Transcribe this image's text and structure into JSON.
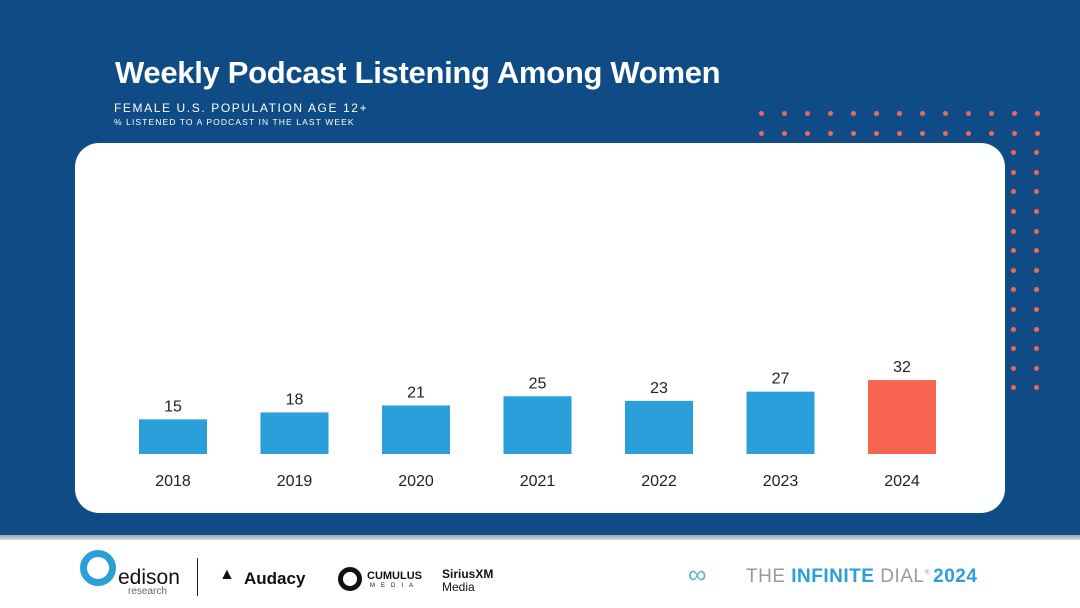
{
  "title": "Weekly Podcast Listening Among Women",
  "subtitle": "FEMALE U.S. POPULATION AGE 12+",
  "subtitle2": "% LISTENED TO A PODCAST IN THE LAST WEEK",
  "colors": {
    "background": "#0f4c86",
    "bar": "#2a9fd9",
    "highlight": "#f76450"
  },
  "chart_data": {
    "type": "bar",
    "title": "Weekly Podcast Listening Among Women",
    "categories": [
      "2018",
      "2019",
      "2020",
      "2021",
      "2022",
      "2023",
      "2024"
    ],
    "values": [
      15,
      18,
      21,
      25,
      23,
      27,
      32
    ],
    "highlight_index": 6,
    "ylim": [
      0,
      100
    ],
    "xlabel": "",
    "ylabel": "%"
  },
  "footer": {
    "sponsors": [
      "edison",
      "research",
      "Audacy",
      "CUMULUS",
      "MEDIA",
      "SiriusXM",
      "Media"
    ],
    "brand_the": "THE ",
    "brand_infinite": "INFINITE",
    "brand_dial": " DIAL",
    "brand_reg": "®",
    "brand_year": "2024"
  }
}
